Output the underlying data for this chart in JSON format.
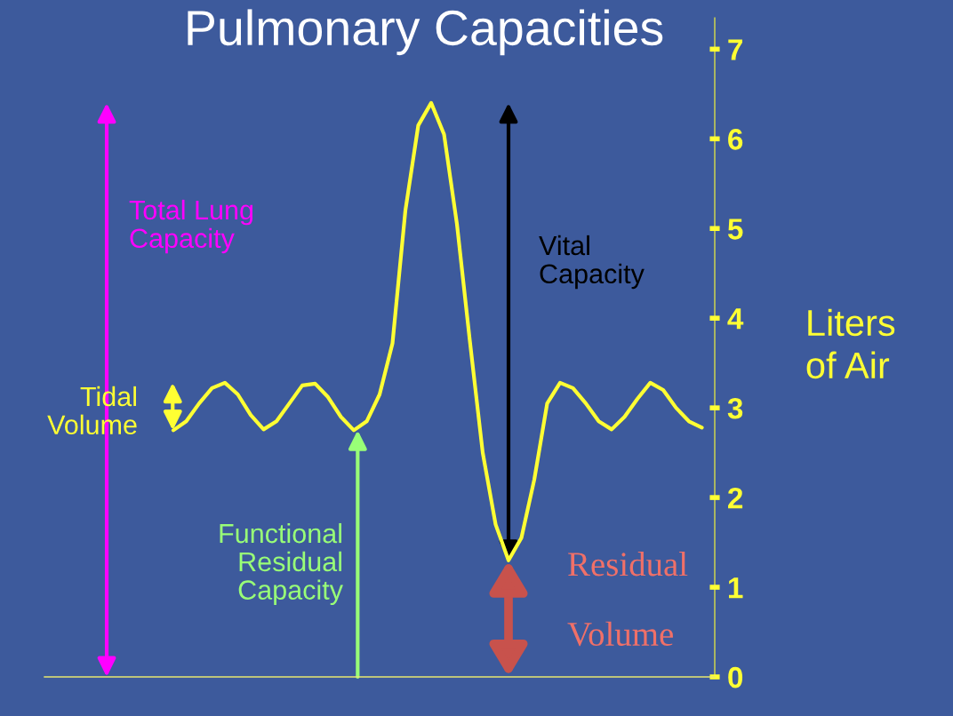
{
  "chart_data": {
    "type": "line",
    "title": "Pulmonary Capacities",
    "ylabel": "Liters\nof Air",
    "categories": [
      null,
      null,
      null,
      null,
      null,
      null,
      null,
      null,
      null,
      null,
      null,
      null,
      null,
      null,
      null,
      null,
      null,
      null,
      null,
      null,
      null,
      null,
      null,
      null,
      null,
      null,
      null,
      null,
      null,
      null,
      null,
      null,
      null,
      null,
      null,
      null,
      null,
      null,
      null,
      null,
      null,
      null,
      null,
      null,
      null,
      null,
      null,
      null,
      null,
      null,
      null,
      null,
      null
    ],
    "series": [
      {
        "color": "#ffff33",
        "values": [
          null,
          null,
          null,
          null,
          null,
          null,
          null,
          null,
          null,
          null,
          2.75,
          2.85,
          3.05,
          3.22,
          3.28,
          3.15,
          2.92,
          2.76,
          2.85,
          3.05,
          3.25,
          3.27,
          3.12,
          2.9,
          2.75,
          2.85,
          3.15,
          3.72,
          5.2,
          6.15,
          6.4,
          6.05,
          5.05,
          3.75,
          2.5,
          1.7,
          1.3,
          1.55,
          2.2,
          3.05,
          3.28,
          3.22,
          3.05,
          2.85,
          2.76,
          2.9,
          3.1,
          3.28,
          3.2,
          3.0,
          2.85,
          2.78,
          null
        ]
      }
    ],
    "ylim": [
      0,
      7.35
    ],
    "yticks": [
      0,
      1,
      2,
      3,
      4,
      5,
      6,
      7
    ],
    "tick_labels": "y",
    "grid": false,
    "legend": false,
    "marker": "none",
    "line_style": "solid",
    "annotations": [
      "Total Lung\nCapacity",
      "Tidal\nVolume",
      "Functional\nResidual\nCapacity",
      "Vital\nCapacity",
      "Residual\n\nVolume"
    ]
  }
}
